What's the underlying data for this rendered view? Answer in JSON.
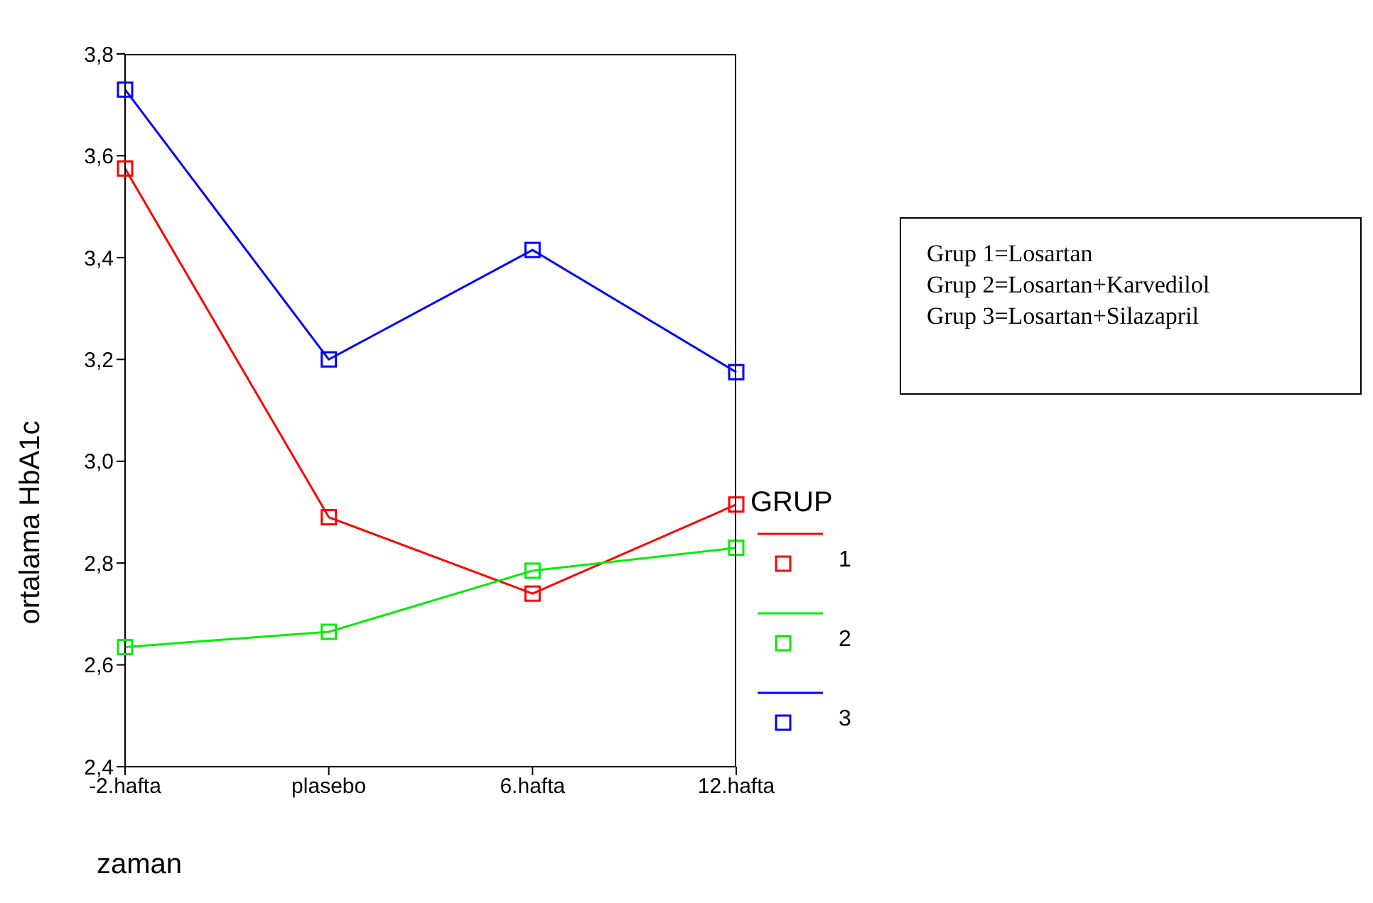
{
  "chart_data": {
    "type": "line",
    "xlabel": "zaman",
    "ylabel": "ortalama HbA1c",
    "legend_title": "GRUP",
    "categories": [
      "-2.hafta",
      "plasebo",
      "6.hafta",
      "12.hafta"
    ],
    "series": [
      {
        "name": "1",
        "color": "#ff0000",
        "values": [
          3.575,
          2.89,
          2.74,
          2.915
        ]
      },
      {
        "name": "2",
        "color": "#00ee00",
        "values": [
          2.635,
          2.665,
          2.785,
          2.83
        ]
      },
      {
        "name": "3",
        "color": "#0000ff",
        "values": [
          3.73,
          3.2,
          3.415,
          3.175
        ]
      }
    ],
    "ylim": [
      2.4,
      3.8
    ],
    "yticks": [
      {
        "value": 2.4,
        "label": "2,4"
      },
      {
        "value": 2.6,
        "label": "2,6"
      },
      {
        "value": 2.8,
        "label": "2,8"
      },
      {
        "value": 3.0,
        "label": "3,0"
      },
      {
        "value": 3.2,
        "label": "3,2"
      },
      {
        "value": 3.4,
        "label": "3,4"
      },
      {
        "value": 3.6,
        "label": "3,6"
      },
      {
        "value": 3.8,
        "label": "3,8"
      }
    ],
    "grid": false,
    "legend": "right",
    "marker": "square",
    "line_style": "solid",
    "annotations": [
      "Grup 1=Losartan\nGrup 2=Losartan+Karvedilol\nGrup 3=Losartan+Silazapril"
    ]
  }
}
